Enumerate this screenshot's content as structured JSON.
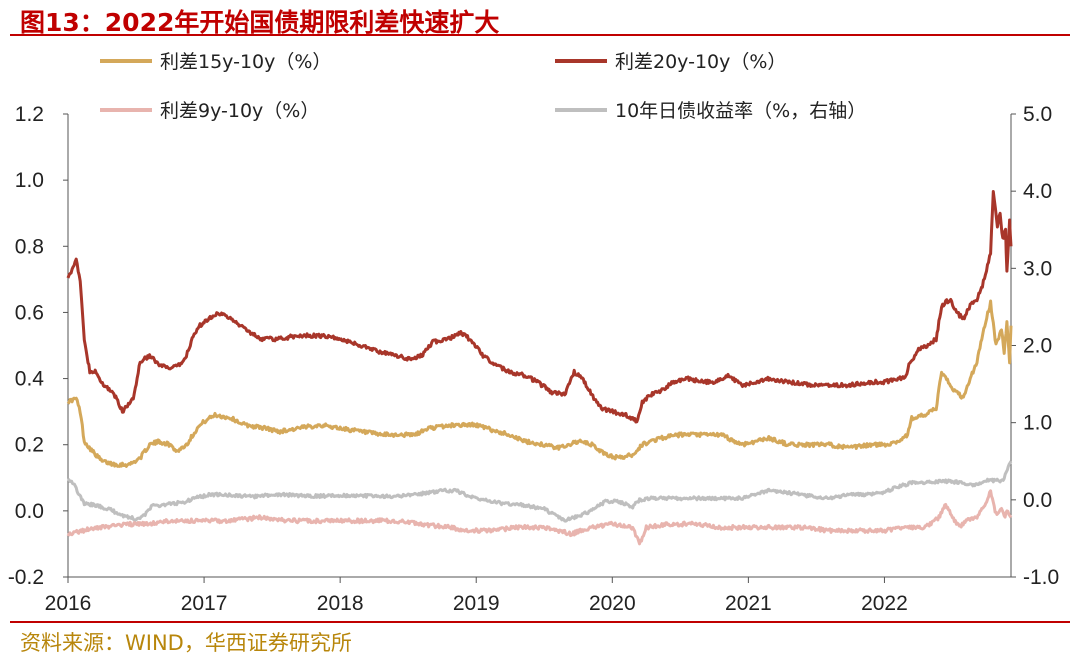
{
  "header": {
    "title": "图13：2022年开始国债期限利差快速扩大"
  },
  "footer": {
    "source": "资料来源：WIND，华西证券研究所"
  },
  "chart_data": {
    "type": "line",
    "x_ticks": [
      "2016",
      "2017",
      "2018",
      "2019",
      "2020",
      "2021",
      "2022"
    ],
    "xlim": [
      2016.0,
      2022.93
    ],
    "y_left": {
      "ticks": [
        "1.2",
        "1.0",
        "0.8",
        "0.6",
        "0.4",
        "0.2",
        "0.0",
        "-0.2"
      ],
      "lim": [
        -0.2,
        1.2
      ]
    },
    "y_right": {
      "ticks": [
        "5.0",
        "4.0",
        "3.0",
        "2.0",
        "1.0",
        "0.0",
        "-1.0"
      ],
      "lim": [
        -1.0,
        5.0
      ]
    },
    "legend_placement": "top",
    "series": [
      {
        "name": "利差15y-10y（%）",
        "axis": "left",
        "color": "#d4a85a",
        "points": [
          [
            2016.0,
            0.33
          ],
          [
            2016.06,
            0.34
          ],
          [
            2016.09,
            0.3
          ],
          [
            2016.12,
            0.21
          ],
          [
            2016.18,
            0.18
          ],
          [
            2016.25,
            0.15
          ],
          [
            2016.35,
            0.14
          ],
          [
            2016.45,
            0.14
          ],
          [
            2016.53,
            0.16
          ],
          [
            2016.6,
            0.2
          ],
          [
            2016.67,
            0.21
          ],
          [
            2016.75,
            0.2
          ],
          [
            2016.8,
            0.18
          ],
          [
            2016.87,
            0.2
          ],
          [
            2016.95,
            0.25
          ],
          [
            2017.0,
            0.27
          ],
          [
            2017.08,
            0.29
          ],
          [
            2017.2,
            0.28
          ],
          [
            2017.3,
            0.26
          ],
          [
            2017.45,
            0.25
          ],
          [
            2017.55,
            0.24
          ],
          [
            2017.7,
            0.25
          ],
          [
            2017.85,
            0.26
          ],
          [
            2018.0,
            0.25
          ],
          [
            2018.15,
            0.24
          ],
          [
            2018.3,
            0.23
          ],
          [
            2018.45,
            0.23
          ],
          [
            2018.55,
            0.23
          ],
          [
            2018.65,
            0.25
          ],
          [
            2018.85,
            0.26
          ],
          [
            2019.0,
            0.26
          ],
          [
            2019.15,
            0.24
          ],
          [
            2019.25,
            0.23
          ],
          [
            2019.35,
            0.21
          ],
          [
            2019.5,
            0.2
          ],
          [
            2019.6,
            0.19
          ],
          [
            2019.75,
            0.21
          ],
          [
            2019.85,
            0.2
          ],
          [
            2019.95,
            0.17
          ],
          [
            2020.05,
            0.16
          ],
          [
            2020.15,
            0.17
          ],
          [
            2020.22,
            0.2
          ],
          [
            2020.28,
            0.21
          ],
          [
            2020.35,
            0.22
          ],
          [
            2020.5,
            0.23
          ],
          [
            2020.65,
            0.23
          ],
          [
            2020.8,
            0.23
          ],
          [
            2020.95,
            0.2
          ],
          [
            2021.05,
            0.21
          ],
          [
            2021.15,
            0.22
          ],
          [
            2021.3,
            0.2
          ],
          [
            2021.45,
            0.2
          ],
          [
            2021.6,
            0.2
          ],
          [
            2021.75,
            0.19
          ],
          [
            2021.9,
            0.2
          ],
          [
            2022.0,
            0.2
          ],
          [
            2022.1,
            0.21
          ],
          [
            2022.17,
            0.23
          ],
          [
            2022.2,
            0.28
          ],
          [
            2022.3,
            0.29
          ],
          [
            2022.38,
            0.31
          ],
          [
            2022.42,
            0.42
          ],
          [
            2022.5,
            0.37
          ],
          [
            2022.58,
            0.34
          ],
          [
            2022.63,
            0.4
          ],
          [
            2022.68,
            0.45
          ],
          [
            2022.73,
            0.55
          ],
          [
            2022.78,
            0.63
          ],
          [
            2022.82,
            0.5
          ],
          [
            2022.86,
            0.55
          ],
          [
            2022.88,
            0.48
          ],
          [
            2022.9,
            0.57
          ],
          [
            2022.92,
            0.45
          ],
          [
            2022.93,
            0.56
          ]
        ]
      },
      {
        "name": "利差20y-10y（%）",
        "axis": "left",
        "color": "#a8362a",
        "points": [
          [
            2016.0,
            0.71
          ],
          [
            2016.03,
            0.73
          ],
          [
            2016.06,
            0.76
          ],
          [
            2016.09,
            0.69
          ],
          [
            2016.12,
            0.52
          ],
          [
            2016.16,
            0.42
          ],
          [
            2016.2,
            0.42
          ],
          [
            2016.26,
            0.38
          ],
          [
            2016.33,
            0.36
          ],
          [
            2016.4,
            0.3
          ],
          [
            2016.48,
            0.34
          ],
          [
            2016.53,
            0.45
          ],
          [
            2016.6,
            0.47
          ],
          [
            2016.67,
            0.44
          ],
          [
            2016.75,
            0.43
          ],
          [
            2016.82,
            0.44
          ],
          [
            2016.87,
            0.47
          ],
          [
            2016.92,
            0.53
          ],
          [
            2016.97,
            0.56
          ],
          [
            2017.03,
            0.58
          ],
          [
            2017.1,
            0.6
          ],
          [
            2017.2,
            0.58
          ],
          [
            2017.3,
            0.55
          ],
          [
            2017.42,
            0.52
          ],
          [
            2017.55,
            0.52
          ],
          [
            2017.7,
            0.53
          ],
          [
            2017.85,
            0.53
          ],
          [
            2018.0,
            0.52
          ],
          [
            2018.15,
            0.5
          ],
          [
            2018.3,
            0.48
          ],
          [
            2018.4,
            0.47
          ],
          [
            2018.5,
            0.46
          ],
          [
            2018.6,
            0.47
          ],
          [
            2018.68,
            0.51
          ],
          [
            2018.8,
            0.52
          ],
          [
            2018.88,
            0.54
          ],
          [
            2018.95,
            0.52
          ],
          [
            2019.05,
            0.47
          ],
          [
            2019.15,
            0.44
          ],
          [
            2019.25,
            0.42
          ],
          [
            2019.35,
            0.41
          ],
          [
            2019.45,
            0.39
          ],
          [
            2019.55,
            0.36
          ],
          [
            2019.65,
            0.35
          ],
          [
            2019.72,
            0.42
          ],
          [
            2019.78,
            0.4
          ],
          [
            2019.85,
            0.35
          ],
          [
            2019.92,
            0.31
          ],
          [
            2020.0,
            0.3
          ],
          [
            2020.1,
            0.29
          ],
          [
            2020.18,
            0.27
          ],
          [
            2020.22,
            0.33
          ],
          [
            2020.28,
            0.35
          ],
          [
            2020.35,
            0.36
          ],
          [
            2020.45,
            0.39
          ],
          [
            2020.55,
            0.4
          ],
          [
            2020.65,
            0.39
          ],
          [
            2020.75,
            0.39
          ],
          [
            2020.85,
            0.41
          ],
          [
            2020.95,
            0.38
          ],
          [
            2021.05,
            0.39
          ],
          [
            2021.15,
            0.4
          ],
          [
            2021.3,
            0.39
          ],
          [
            2021.45,
            0.38
          ],
          [
            2021.6,
            0.38
          ],
          [
            2021.75,
            0.38
          ],
          [
            2021.9,
            0.39
          ],
          [
            2022.0,
            0.39
          ],
          [
            2022.1,
            0.4
          ],
          [
            2022.15,
            0.4
          ],
          [
            2022.18,
            0.44
          ],
          [
            2022.25,
            0.49
          ],
          [
            2022.32,
            0.5
          ],
          [
            2022.38,
            0.52
          ],
          [
            2022.42,
            0.62
          ],
          [
            2022.48,
            0.64
          ],
          [
            2022.53,
            0.6
          ],
          [
            2022.58,
            0.58
          ],
          [
            2022.63,
            0.62
          ],
          [
            2022.68,
            0.64
          ],
          [
            2022.72,
            0.68
          ],
          [
            2022.78,
            0.78
          ],
          [
            2022.8,
            0.97
          ],
          [
            2022.83,
            0.86
          ],
          [
            2022.85,
            0.9
          ],
          [
            2022.87,
            0.82
          ],
          [
            2022.89,
            0.85
          ],
          [
            2022.9,
            0.72
          ],
          [
            2022.92,
            0.88
          ],
          [
            2022.93,
            0.8
          ]
        ]
      },
      {
        "name": "利差9y-10y（%）",
        "axis": "left",
        "color": "#e8b4ae",
        "points": [
          [
            2016.0,
            -0.07
          ],
          [
            2016.1,
            -0.06
          ],
          [
            2016.25,
            -0.05
          ],
          [
            2016.45,
            -0.04
          ],
          [
            2016.6,
            -0.04
          ],
          [
            2016.75,
            -0.03
          ],
          [
            2016.9,
            -0.03
          ],
          [
            2017.0,
            -0.03
          ],
          [
            2017.2,
            -0.03
          ],
          [
            2017.4,
            -0.02
          ],
          [
            2017.6,
            -0.03
          ],
          [
            2017.8,
            -0.03
          ],
          [
            2018.0,
            -0.03
          ],
          [
            2018.2,
            -0.03
          ],
          [
            2018.4,
            -0.03
          ],
          [
            2018.6,
            -0.04
          ],
          [
            2018.8,
            -0.05
          ],
          [
            2018.95,
            -0.06
          ],
          [
            2019.1,
            -0.06
          ],
          [
            2019.3,
            -0.05
          ],
          [
            2019.5,
            -0.05
          ],
          [
            2019.7,
            -0.07
          ],
          [
            2019.85,
            -0.05
          ],
          [
            2020.0,
            -0.04
          ],
          [
            2020.15,
            -0.05
          ],
          [
            2020.2,
            -0.1
          ],
          [
            2020.25,
            -0.05
          ],
          [
            2020.4,
            -0.04
          ],
          [
            2020.6,
            -0.04
          ],
          [
            2020.8,
            -0.05
          ],
          [
            2021.0,
            -0.05
          ],
          [
            2021.2,
            -0.05
          ],
          [
            2021.4,
            -0.05
          ],
          [
            2021.6,
            -0.06
          ],
          [
            2021.8,
            -0.06
          ],
          [
            2022.0,
            -0.06
          ],
          [
            2022.15,
            -0.05
          ],
          [
            2022.3,
            -0.05
          ],
          [
            2022.4,
            -0.02
          ],
          [
            2022.45,
            0.02
          ],
          [
            2022.5,
            -0.02
          ],
          [
            2022.55,
            -0.05
          ],
          [
            2022.6,
            -0.03
          ],
          [
            2022.68,
            -0.02
          ],
          [
            2022.73,
            0.01
          ],
          [
            2022.78,
            0.06
          ],
          [
            2022.82,
            -0.01
          ],
          [
            2022.86,
            0.01
          ],
          [
            2022.88,
            -0.02
          ],
          [
            2022.9,
            0.0
          ],
          [
            2022.93,
            -0.02
          ]
        ]
      },
      {
        "name": "10年日债收益率（%，右轴）",
        "axis": "right",
        "color": "#bfbfbf",
        "points": [
          [
            2016.0,
            0.27
          ],
          [
            2016.04,
            0.22
          ],
          [
            2016.08,
            0.07
          ],
          [
            2016.12,
            -0.05
          ],
          [
            2016.2,
            -0.07
          ],
          [
            2016.3,
            -0.12
          ],
          [
            2016.4,
            -0.2
          ],
          [
            2016.5,
            -0.25
          ],
          [
            2016.56,
            -0.2
          ],
          [
            2016.62,
            -0.08
          ],
          [
            2016.72,
            -0.06
          ],
          [
            2016.85,
            -0.03
          ],
          [
            2016.95,
            0.03
          ],
          [
            2017.05,
            0.07
          ],
          [
            2017.2,
            0.06
          ],
          [
            2017.35,
            0.04
          ],
          [
            2017.55,
            0.07
          ],
          [
            2017.75,
            0.05
          ],
          [
            2017.9,
            0.05
          ],
          [
            2018.0,
            0.06
          ],
          [
            2018.2,
            0.05
          ],
          [
            2018.4,
            0.04
          ],
          [
            2018.6,
            0.08
          ],
          [
            2018.75,
            0.12
          ],
          [
            2018.85,
            0.12
          ],
          [
            2018.95,
            0.05
          ],
          [
            2019.05,
            0.0
          ],
          [
            2019.2,
            -0.05
          ],
          [
            2019.35,
            -0.07
          ],
          [
            2019.5,
            -0.12
          ],
          [
            2019.6,
            -0.22
          ],
          [
            2019.65,
            -0.27
          ],
          [
            2019.75,
            -0.21
          ],
          [
            2019.85,
            -0.14
          ],
          [
            2019.95,
            -0.02
          ],
          [
            2020.05,
            -0.02
          ],
          [
            2020.15,
            -0.09
          ],
          [
            2020.2,
            0.0
          ],
          [
            2020.3,
            0.02
          ],
          [
            2020.45,
            0.02
          ],
          [
            2020.6,
            0.02
          ],
          [
            2020.8,
            0.02
          ],
          [
            2020.95,
            0.02
          ],
          [
            2021.05,
            0.07
          ],
          [
            2021.15,
            0.12
          ],
          [
            2021.3,
            0.09
          ],
          [
            2021.45,
            0.05
          ],
          [
            2021.6,
            0.02
          ],
          [
            2021.75,
            0.07
          ],
          [
            2021.9,
            0.07
          ],
          [
            2022.0,
            0.1
          ],
          [
            2022.1,
            0.17
          ],
          [
            2022.2,
            0.22
          ],
          [
            2022.3,
            0.23
          ],
          [
            2022.45,
            0.24
          ],
          [
            2022.55,
            0.23
          ],
          [
            2022.65,
            0.19
          ],
          [
            2022.75,
            0.25
          ],
          [
            2022.85,
            0.25
          ],
          [
            2022.88,
            0.27
          ],
          [
            2022.91,
            0.45
          ],
          [
            2022.93,
            0.5
          ]
        ]
      }
    ]
  }
}
